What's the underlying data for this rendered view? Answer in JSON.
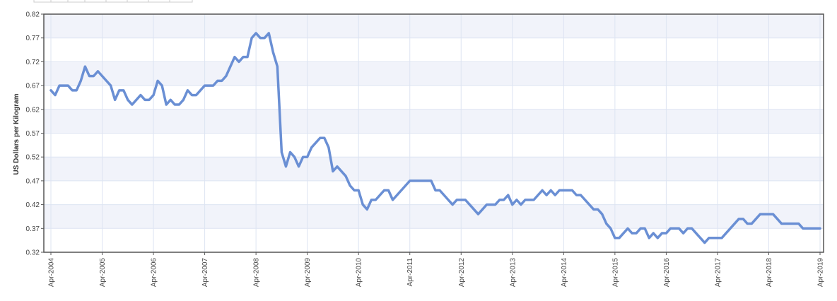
{
  "chart_data": {
    "type": "line",
    "y_label": "US Dollars per Kilogram",
    "categories": [
      "Apr-2004",
      null,
      null,
      null,
      null,
      null,
      null,
      null,
      null,
      null,
      null,
      null,
      "Apr-2005",
      null,
      null,
      null,
      null,
      null,
      null,
      null,
      null,
      null,
      null,
      null,
      "Apr-2006",
      null,
      null,
      null,
      null,
      null,
      null,
      null,
      null,
      null,
      null,
      null,
      "Apr-2007",
      null,
      null,
      null,
      null,
      null,
      null,
      null,
      null,
      null,
      null,
      null,
      "Apr-2008",
      null,
      null,
      null,
      null,
      null,
      null,
      null,
      null,
      null,
      null,
      null,
      "Apr-2009",
      null,
      null,
      null,
      null,
      null,
      null,
      null,
      null,
      null,
      null,
      null,
      "Apr-2010",
      null,
      null,
      null,
      null,
      null,
      null,
      null,
      null,
      null,
      null,
      null,
      "Apr-2011",
      null,
      null,
      null,
      null,
      null,
      null,
      null,
      null,
      null,
      null,
      null,
      "Apr-2012",
      null,
      null,
      null,
      null,
      null,
      null,
      null,
      null,
      null,
      null,
      null,
      "Apr-2013",
      null,
      null,
      null,
      null,
      null,
      null,
      null,
      null,
      null,
      null,
      null,
      "Apr-2014",
      null,
      null,
      null,
      null,
      null,
      null,
      null,
      null,
      null,
      null,
      null,
      "Apr-2015",
      null,
      null,
      null,
      null,
      null,
      null,
      null,
      null,
      null,
      null,
      null,
      "Apr-2016",
      null,
      null,
      null,
      null,
      null,
      null,
      null,
      null,
      null,
      null,
      null,
      "Apr-2017",
      null,
      null,
      null,
      null,
      null,
      null,
      null,
      null,
      null,
      null,
      null,
      "Apr-2018",
      null,
      null,
      null,
      null,
      null,
      null,
      null,
      null,
      null,
      null,
      null,
      "Apr-2019"
    ],
    "values": [
      0.66,
      0.65,
      0.67,
      0.67,
      0.67,
      0.66,
      0.66,
      0.68,
      0.71,
      0.69,
      0.69,
      0.7,
      0.69,
      0.68,
      0.67,
      0.64,
      0.66,
      0.66,
      0.64,
      0.63,
      0.64,
      0.65,
      0.64,
      0.64,
      0.65,
      0.68,
      0.67,
      0.63,
      0.64,
      0.63,
      0.63,
      0.64,
      0.66,
      0.65,
      0.65,
      0.66,
      0.67,
      0.67,
      0.67,
      0.68,
      0.68,
      0.69,
      0.71,
      0.73,
      0.72,
      0.73,
      0.73,
      0.77,
      0.78,
      0.77,
      0.77,
      0.78,
      0.74,
      0.71,
      0.53,
      0.5,
      0.53,
      0.52,
      0.5,
      0.52,
      0.52,
      0.54,
      0.55,
      0.56,
      0.56,
      0.54,
      0.49,
      0.5,
      0.49,
      0.48,
      0.46,
      0.45,
      0.45,
      0.42,
      0.41,
      0.43,
      0.43,
      0.44,
      0.45,
      0.45,
      0.43,
      0.44,
      0.45,
      0.46,
      0.47,
      0.47,
      0.47,
      0.47,
      0.47,
      0.47,
      0.45,
      0.45,
      0.44,
      0.43,
      0.42,
      0.43,
      0.43,
      0.43,
      0.42,
      0.41,
      0.4,
      0.41,
      0.42,
      0.42,
      0.42,
      0.43,
      0.43,
      0.44,
      0.42,
      0.43,
      0.42,
      0.43,
      0.43,
      0.43,
      0.44,
      0.45,
      0.44,
      0.45,
      0.44,
      0.45,
      0.45,
      0.45,
      0.45,
      0.44,
      0.44,
      0.43,
      0.42,
      0.41,
      0.41,
      0.4,
      0.38,
      0.37,
      0.35,
      0.35,
      0.36,
      0.37,
      0.36,
      0.36,
      0.37,
      0.37,
      0.35,
      0.36,
      0.35,
      0.36,
      0.36,
      0.37,
      0.37,
      0.37,
      0.36,
      0.37,
      0.37,
      0.36,
      0.35,
      0.34,
      0.35,
      0.35,
      0.35,
      0.35,
      0.36,
      0.37,
      0.38,
      0.39,
      0.39,
      0.38,
      0.38,
      0.39,
      0.4,
      0.4,
      0.4,
      0.4,
      0.39,
      0.38,
      0.38,
      0.38,
      0.38,
      0.38,
      0.37,
      0.37,
      0.37,
      0.37,
      0.37
    ],
    "color": "#6a8fd4",
    "ylim": [
      0.32,
      0.82
    ],
    "yticks": [
      0.32,
      0.37,
      0.42,
      0.47,
      0.52,
      0.57,
      0.62,
      0.67,
      0.72,
      0.77,
      0.82
    ],
    "grid": true
  }
}
